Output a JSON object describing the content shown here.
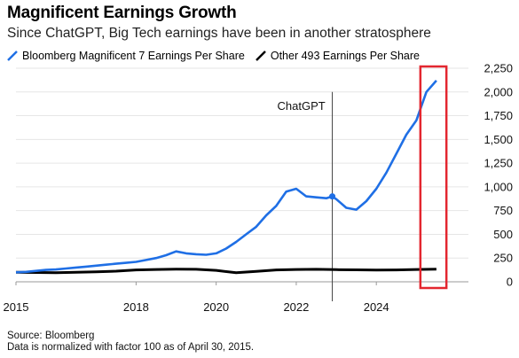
{
  "chart_data": {
    "type": "line",
    "title": "Magnificent Earnings Growth",
    "subtitle": "Since ChatGPT, Big Tech earnings have been in another stratosphere",
    "xlabel": "",
    "ylabel": "",
    "ylim": [
      0,
      2250
    ],
    "xlim": [
      2015,
      2026.3
    ],
    "x_ticks": [
      "2015",
      "2018",
      "2020",
      "2022",
      "2024"
    ],
    "y_ticks": [
      "0",
      "250",
      "500",
      "750",
      "1,000",
      "1,250",
      "1,500",
      "1,750",
      "2,000",
      "2,250"
    ],
    "grid": "horizontal",
    "legend_position": "top",
    "annotation": {
      "label": "ChatGPT",
      "x": 2022.9
    },
    "series": [
      {
        "name": "Bloomberg Magnificent 7 Earnings Per Share",
        "color": "#1f6fe5",
        "x": [
          2015.0,
          2015.25,
          2015.5,
          2015.75,
          2016.0,
          2016.25,
          2016.5,
          2016.75,
          2017.0,
          2017.25,
          2017.5,
          2017.75,
          2018.0,
          2018.25,
          2018.5,
          2018.75,
          2019.0,
          2019.25,
          2019.5,
          2019.75,
          2020.0,
          2020.25,
          2020.5,
          2020.75,
          2021.0,
          2021.25,
          2021.5,
          2021.75,
          2022.0,
          2022.25,
          2022.5,
          2022.75,
          2022.9,
          2023.0,
          2023.25,
          2023.5,
          2023.75,
          2024.0,
          2024.25,
          2024.5,
          2024.75,
          2025.0,
          2025.25,
          2025.5
        ],
        "values": [
          100,
          105,
          115,
          125,
          130,
          140,
          150,
          160,
          170,
          180,
          190,
          200,
          210,
          230,
          250,
          280,
          320,
          300,
          290,
          285,
          300,
          350,
          420,
          500,
          580,
          700,
          800,
          950,
          980,
          900,
          890,
          880,
          900,
          870,
          780,
          760,
          850,
          980,
          1150,
          1350,
          1550,
          1700,
          2000,
          2120
        ]
      },
      {
        "name": "Other 493 Earnings Per Share",
        "color": "#000000",
        "x": [
          2015.0,
          2015.5,
          2016.0,
          2016.5,
          2017.0,
          2017.5,
          2018.0,
          2018.5,
          2019.0,
          2019.5,
          2020.0,
          2020.5,
          2021.0,
          2021.5,
          2022.0,
          2022.5,
          2023.0,
          2023.5,
          2024.0,
          2024.5,
          2025.0,
          2025.5
        ],
        "values": [
          100,
          98,
          96,
          100,
          105,
          112,
          125,
          130,
          133,
          132,
          120,
          95,
          110,
          125,
          130,
          132,
          128,
          126,
          124,
          125,
          130,
          133
        ]
      }
    ]
  },
  "source": {
    "line1": "Source: Bloomberg",
    "line2": "Data is normalized with factor 100 as of April 30, 2015."
  }
}
